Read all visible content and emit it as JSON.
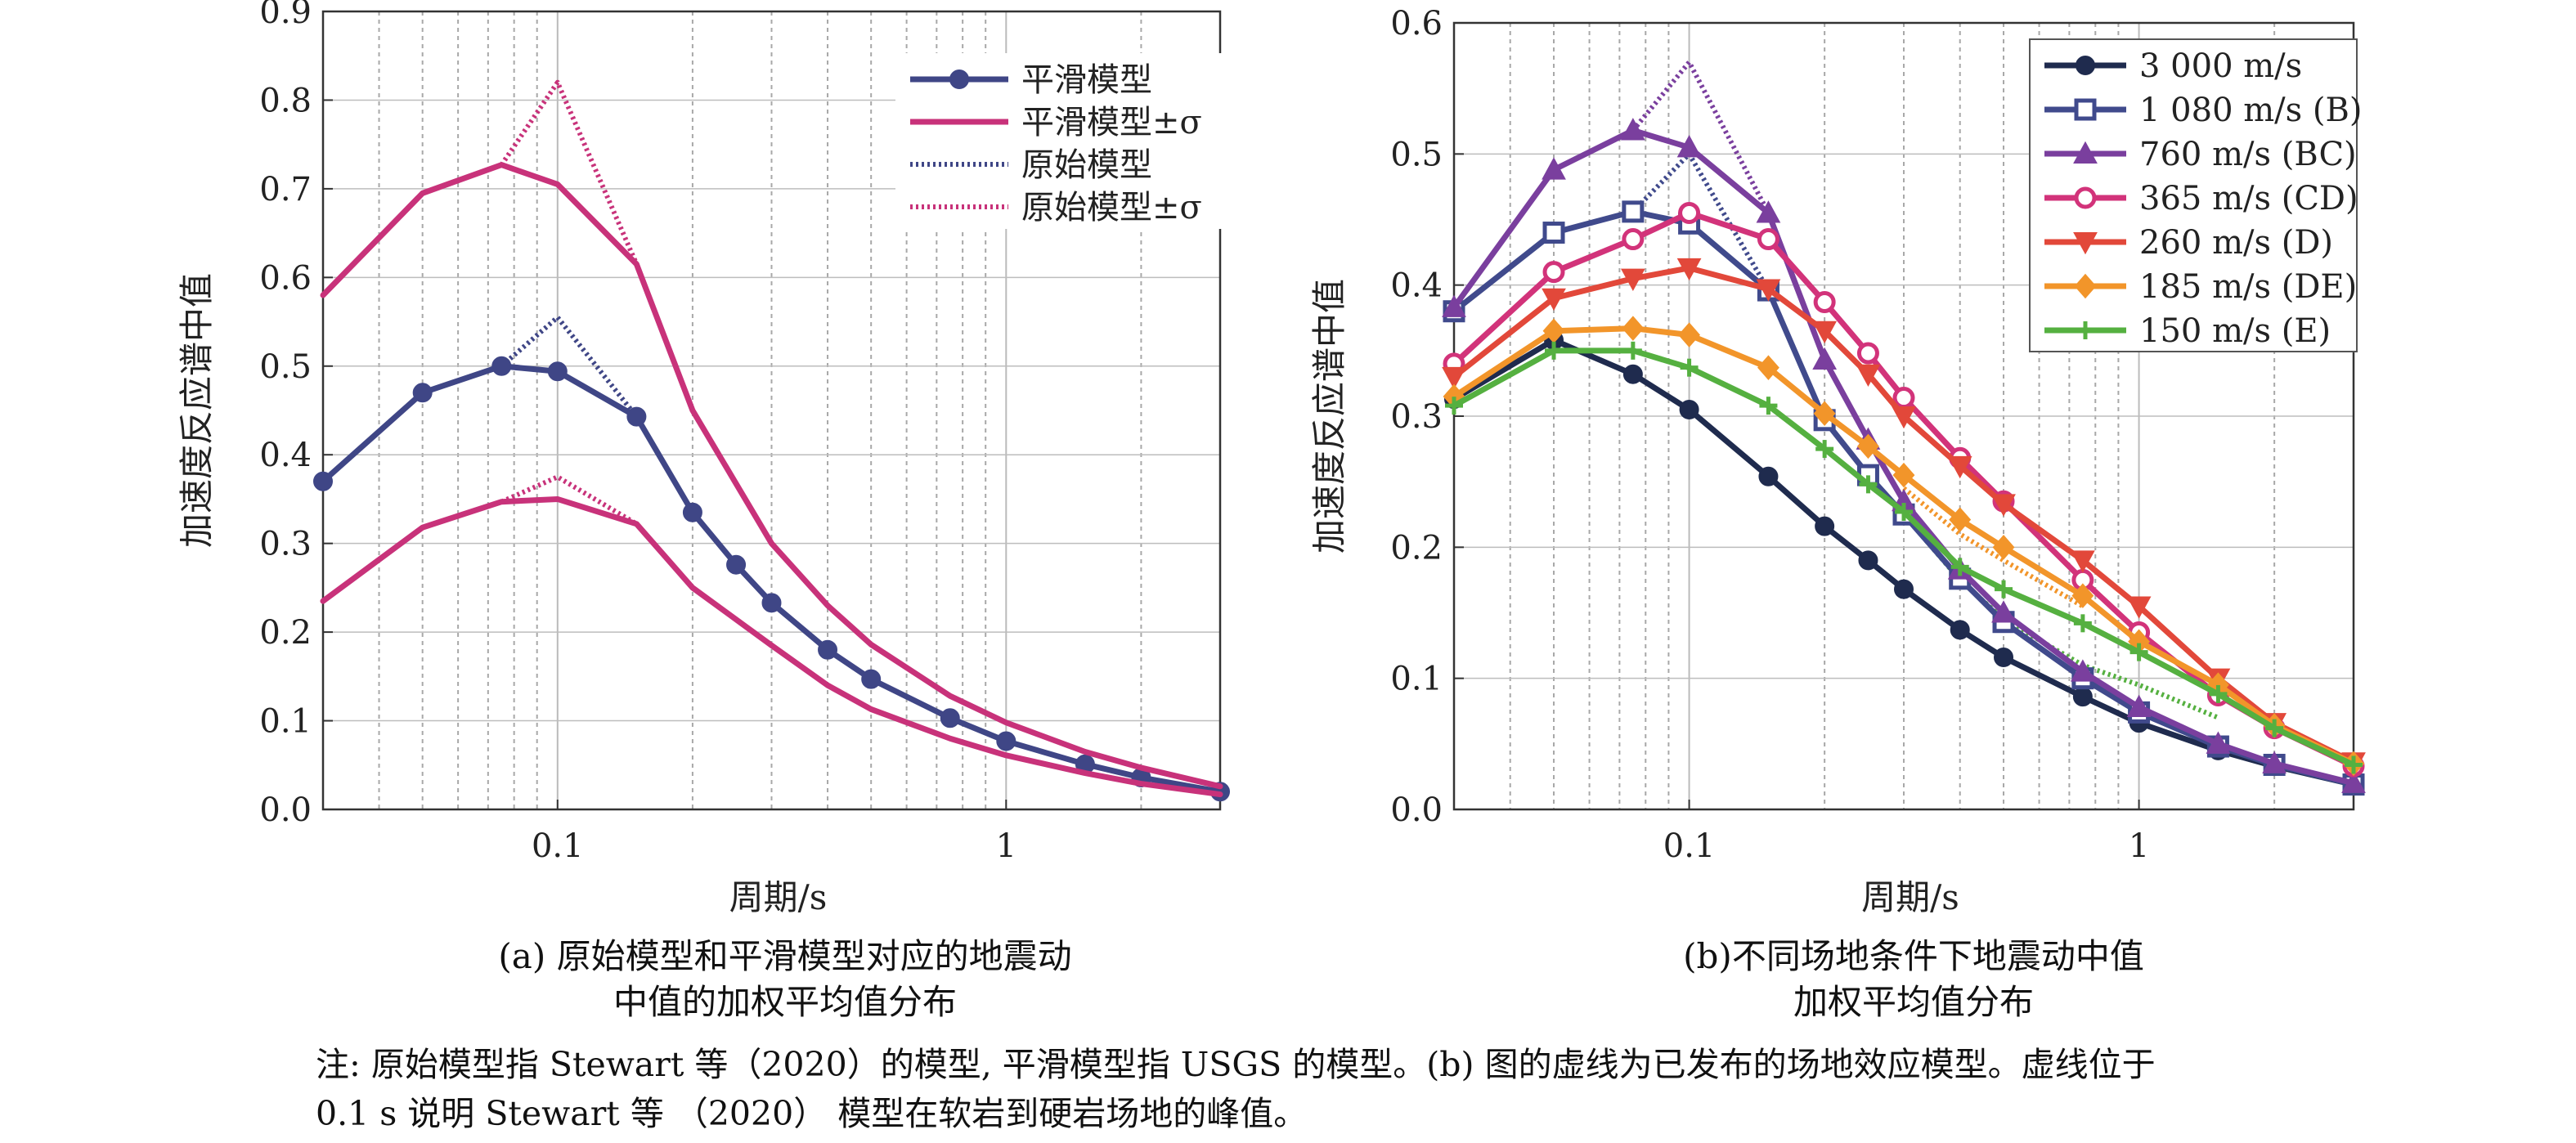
{
  "chart_data": [
    {
      "type": "line",
      "xscale": "log",
      "xlim": [
        0.03,
        3
      ],
      "ylim": [
        0,
        0.9
      ],
      "xlabel": "周期/s",
      "ylabel": "加速度反应谱中值",
      "xticks": [
        "0.1",
        "1"
      ],
      "yticks": [
        "0.0",
        "0.1",
        "0.2",
        "0.3",
        "0.4",
        "0.5",
        "0.6",
        "0.7",
        "0.8",
        "0.9"
      ],
      "grid": true,
      "legend": "top-right",
      "caption": [
        "(a) 原始模型和平滑模型对应的地震动",
        "中值的加权平均值分布"
      ],
      "series": [
        {
          "name": "平滑模型",
          "color": "#3f4686",
          "style": "solid",
          "marker": "circle",
          "x": [
            0.03,
            0.05,
            0.075,
            0.1,
            0.15,
            0.2,
            0.25,
            0.3,
            0.4,
            0.5,
            0.75,
            1,
            1.5,
            2,
            3
          ],
          "y": [
            0.37,
            0.47,
            0.5,
            0.494,
            0.443,
            0.335,
            0.276,
            0.233,
            0.18,
            0.147,
            0.103,
            0.077,
            0.051,
            0.036,
            0.02
          ]
        },
        {
          "name": "平滑模型±σ",
          "color": "#c8327a",
          "style": "solid",
          "marker": "none",
          "x": [
            0.03,
            0.05,
            0.075,
            0.1,
            0.15,
            0.2,
            0.3,
            0.4,
            0.5,
            0.75,
            1,
            1.5,
            2,
            3
          ],
          "y": [
            0.58,
            0.695,
            0.727,
            0.705,
            0.615,
            0.45,
            0.3,
            0.23,
            0.186,
            0.128,
            0.098,
            0.065,
            0.047,
            0.026
          ]
        },
        {
          "name": "",
          "color": "#c8327a",
          "style": "solid",
          "marker": "none",
          "x": [
            0.03,
            0.05,
            0.075,
            0.1,
            0.15,
            0.2,
            0.3,
            0.4,
            0.5,
            0.75,
            1,
            1.5,
            2,
            3
          ],
          "y": [
            0.235,
            0.318,
            0.347,
            0.35,
            0.322,
            0.25,
            0.185,
            0.14,
            0.113,
            0.08,
            0.061,
            0.041,
            0.029,
            0.017
          ]
        },
        {
          "name": "原始模型",
          "color": "#3f4686",
          "style": "dotted",
          "marker": "none",
          "x": [
            0.075,
            0.1,
            0.15
          ],
          "y": [
            0.5,
            0.555,
            0.443
          ]
        },
        {
          "name": "原始模型±σ",
          "color": "#c8327a",
          "style": "dotted",
          "marker": "none",
          "x": [
            0.075,
            0.1,
            0.15
          ],
          "y": [
            0.727,
            0.82,
            0.615
          ]
        },
        {
          "name": "",
          "color": "#c8327a",
          "style": "dotted",
          "marker": "none",
          "x": [
            0.075,
            0.1,
            0.15
          ],
          "y": [
            0.347,
            0.375,
            0.322
          ]
        }
      ]
    },
    {
      "type": "line",
      "xscale": "log",
      "xlim": [
        0.03,
        3
      ],
      "ylim": [
        0,
        0.6
      ],
      "xlabel": "周期/s",
      "ylabel": "加速度反应谱中值",
      "xticks": [
        "0.1",
        "1"
      ],
      "yticks": [
        "0.0",
        "0.1",
        "0.2",
        "0.3",
        "0.4",
        "0.5",
        "0.6"
      ],
      "grid": true,
      "legend": "top-right",
      "caption": [
        "(b)不同场地条件下地震动中值",
        "加权平均值分布"
      ],
      "series": [
        {
          "name": "3 000 m/s",
          "color": "#1f2b4e",
          "style": "solid",
          "marker": "circle",
          "x": [
            0.03,
            0.05,
            0.075,
            0.1,
            0.15,
            0.2,
            0.25,
            0.3,
            0.4,
            0.5,
            0.75,
            1,
            1.5,
            2,
            3
          ],
          "y": [
            0.313,
            0.358,
            0.332,
            0.305,
            0.254,
            0.216,
            0.19,
            0.168,
            0.137,
            0.116,
            0.086,
            0.066,
            0.045,
            0.033,
            0.019
          ]
        },
        {
          "name": "1 080 m/s (B)",
          "color": "#404a8c",
          "style": "solid",
          "marker": "square",
          "x": [
            0.03,
            0.05,
            0.075,
            0.1,
            0.15,
            0.2,
            0.25,
            0.3,
            0.4,
            0.5,
            0.75,
            1,
            1.5,
            2,
            3
          ],
          "y": [
            0.38,
            0.44,
            0.456,
            0.447,
            0.396,
            0.297,
            0.255,
            0.225,
            0.176,
            0.143,
            0.1,
            0.074,
            0.048,
            0.034,
            0.019
          ]
        },
        {
          "name": "760 m/s (BC)",
          "color": "#7a3f9e",
          "style": "solid",
          "marker": "triangle-up",
          "x": [
            0.03,
            0.05,
            0.075,
            0.1,
            0.15,
            0.2,
            0.25,
            0.3,
            0.4,
            0.5,
            0.75,
            1,
            1.5,
            2,
            3
          ],
          "y": [
            0.383,
            0.488,
            0.518,
            0.505,
            0.455,
            0.343,
            0.282,
            0.235,
            0.183,
            0.15,
            0.105,
            0.078,
            0.05,
            0.035,
            0.02
          ]
        },
        {
          "name": "365 m/s (CD)",
          "color": "#d2337a",
          "style": "solid",
          "marker": "circle-open",
          "x": [
            0.03,
            0.05,
            0.075,
            0.1,
            0.15,
            0.2,
            0.25,
            0.3,
            0.4,
            0.5,
            0.75,
            1,
            1.5,
            2,
            3
          ],
          "y": [
            0.34,
            0.41,
            0.435,
            0.455,
            0.435,
            0.387,
            0.348,
            0.314,
            0.268,
            0.235,
            0.175,
            0.135,
            0.087,
            0.062,
            0.033
          ]
        },
        {
          "name": "260 m/s (D)",
          "color": "#e2483a",
          "style": "solid",
          "marker": "triangle-down",
          "x": [
            0.03,
            0.05,
            0.075,
            0.1,
            0.15,
            0.2,
            0.25,
            0.3,
            0.4,
            0.5,
            0.75,
            1,
            1.5,
            2,
            3
          ],
          "y": [
            0.33,
            0.39,
            0.405,
            0.413,
            0.397,
            0.365,
            0.332,
            0.3,
            0.262,
            0.233,
            0.19,
            0.155,
            0.1,
            0.066,
            0.036
          ]
        },
        {
          "name": "185 m/s (DE)",
          "color": "#f2952a",
          "style": "solid",
          "marker": "diamond",
          "x": [
            0.03,
            0.05,
            0.075,
            0.1,
            0.15,
            0.2,
            0.25,
            0.3,
            0.4,
            0.5,
            0.75,
            1,
            1.5,
            2,
            3
          ],
          "y": [
            0.315,
            0.365,
            0.367,
            0.362,
            0.337,
            0.302,
            0.277,
            0.255,
            0.221,
            0.2,
            0.163,
            0.128,
            0.095,
            0.064,
            0.035
          ]
        },
        {
          "name": "150 m/s (E)",
          "color": "#55b040",
          "style": "solid",
          "marker": "plus",
          "x": [
            0.03,
            0.05,
            0.075,
            0.1,
            0.15,
            0.2,
            0.25,
            0.3,
            0.4,
            0.5,
            0.75,
            1,
            1.5,
            2,
            3
          ],
          "y": [
            0.308,
            0.35,
            0.35,
            0.337,
            0.308,
            0.275,
            0.248,
            0.227,
            0.185,
            0.168,
            0.142,
            0.12,
            0.088,
            0.062,
            0.034
          ]
        },
        {
          "name": "",
          "color": "#404a8c",
          "style": "dotted",
          "marker": "none",
          "x": [
            0.075,
            0.1,
            0.15
          ],
          "y": [
            0.456,
            0.5,
            0.396
          ]
        },
        {
          "name": "",
          "color": "#7a3f9e",
          "style": "dotted",
          "marker": "none",
          "x": [
            0.075,
            0.1,
            0.15
          ],
          "y": [
            0.518,
            0.57,
            0.455
          ]
        },
        {
          "name": "",
          "color": "#55b040",
          "style": "dotted",
          "marker": "none",
          "x": [
            0.3,
            0.4,
            0.5,
            0.75,
            1,
            1.5
          ],
          "y": [
            0.225,
            0.175,
            0.145,
            0.11,
            0.095,
            0.07
          ]
        },
        {
          "name": "",
          "color": "#f2952a",
          "style": "dotted",
          "marker": "none",
          "x": [
            0.3,
            0.4,
            0.5,
            0.75
          ],
          "y": [
            0.245,
            0.21,
            0.19,
            0.155
          ]
        }
      ]
    }
  ],
  "note": {
    "line1": "注: 原始模型指 Stewart 等（2020）的模型, 平滑模型指 USGS 的模型。(b) 图的虚线为已发布的场地效应模型。虚线位于",
    "line2": "0.1 s 说明 Stewart 等 （2020） 模型在软岩到硬岩场地的峰值。"
  }
}
